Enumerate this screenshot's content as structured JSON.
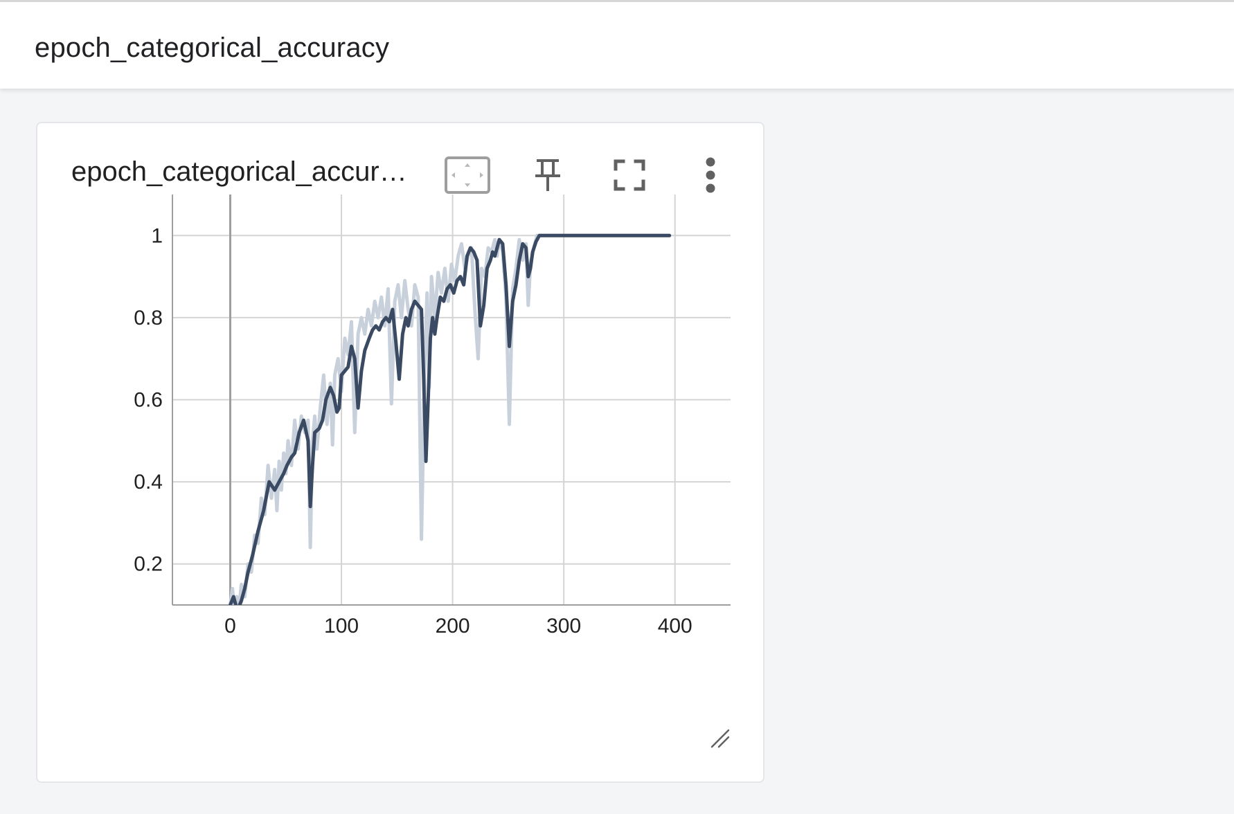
{
  "group": {
    "title": "epoch_categorical_accuracy"
  },
  "card": {
    "title": "epoch_categorical_accuracy",
    "toolbar": [
      {
        "name": "fit-domain-icon",
        "label": "Fit domain to data"
      },
      {
        "name": "pin-icon",
        "label": "Pin card"
      },
      {
        "name": "fullscreen-icon",
        "label": "Toggle full size"
      },
      {
        "name": "more-vert-icon",
        "label": "More options"
      }
    ]
  },
  "colors": {
    "line": "#3a4a63",
    "raw": "#c8d0dc",
    "grid": "#d4d4d4",
    "axis": "#9e9e9e"
  },
  "chart_data": {
    "type": "line",
    "title": "",
    "xlabel": "",
    "ylabel": "",
    "xlim": [
      -52,
      450
    ],
    "ylim": [
      0.1,
      1.1
    ],
    "xticks": [
      0,
      100,
      200,
      300,
      400
    ],
    "xtick_labels": [
      "0",
      "100",
      "200",
      "300",
      "400"
    ],
    "yticks": [
      0.2,
      0.4,
      0.6,
      0.8,
      1
    ],
    "ytick_labels": [
      "0.2",
      "0.4",
      "0.6",
      "0.8",
      "1"
    ],
    "grid": true,
    "series": [
      {
        "role": "smoothed",
        "x": [
          0,
          3,
          5,
          7,
          10,
          13,
          16,
          20,
          25,
          30,
          35,
          40,
          44,
          48,
          51,
          55,
          58,
          62,
          66,
          70,
          72,
          74,
          76,
          80,
          83,
          86,
          90,
          93,
          96,
          98,
          100,
          103,
          106,
          109,
          112,
          115,
          118,
          121,
          125,
          128,
          131,
          134,
          137,
          140,
          143,
          146,
          149,
          152,
          155,
          158,
          160,
          163,
          166,
          169,
          172,
          174,
          176,
          178,
          180,
          182,
          184,
          186,
          189,
          192,
          195,
          198,
          201,
          204,
          207,
          210,
          213,
          216,
          219,
          222,
          225,
          228,
          231,
          234,
          236,
          238,
          240,
          242,
          245,
          248,
          251,
          254,
          257,
          260,
          263,
          266,
          268,
          270,
          272,
          275,
          278,
          281,
          284,
          287,
          290,
          293,
          296,
          298,
          300,
          303,
          306,
          310,
          315,
          320,
          330,
          350,
          380,
          395
        ],
        "y": [
          0.1,
          0.12,
          0.1,
          0.09,
          0.11,
          0.14,
          0.18,
          0.22,
          0.28,
          0.33,
          0.4,
          0.38,
          0.4,
          0.42,
          0.44,
          0.46,
          0.47,
          0.52,
          0.55,
          0.5,
          0.34,
          0.44,
          0.52,
          0.53,
          0.55,
          0.6,
          0.63,
          0.61,
          0.57,
          0.58,
          0.66,
          0.67,
          0.68,
          0.73,
          0.7,
          0.58,
          0.67,
          0.72,
          0.75,
          0.77,
          0.78,
          0.77,
          0.79,
          0.8,
          0.79,
          0.82,
          0.74,
          0.65,
          0.76,
          0.8,
          0.78,
          0.82,
          0.84,
          0.83,
          0.82,
          0.65,
          0.45,
          0.6,
          0.75,
          0.8,
          0.76,
          0.8,
          0.85,
          0.84,
          0.87,
          0.88,
          0.86,
          0.89,
          0.9,
          0.88,
          0.95,
          0.97,
          0.96,
          0.94,
          0.78,
          0.83,
          0.92,
          0.94,
          0.96,
          0.95,
          0.97,
          0.99,
          0.98,
          0.88,
          0.73,
          0.84,
          0.88,
          0.94,
          0.98,
          0.97,
          0.9,
          0.92,
          0.96,
          0.985,
          1.0,
          1.0,
          1.0,
          1.0,
          1.0,
          1.0,
          1.0,
          1.0,
          1.0,
          1.0,
          1.0,
          1.0,
          1.0,
          1.0,
          1.0,
          1.0,
          1.0,
          1.0
        ]
      },
      {
        "role": "raw",
        "x": [
          0,
          2,
          4,
          6,
          8,
          10,
          13,
          16,
          19,
          22,
          25,
          28,
          31,
          34,
          37,
          40,
          42,
          44,
          46,
          48,
          50,
          52,
          55,
          58,
          61,
          64,
          67,
          70,
          72,
          74,
          76,
          78,
          81,
          84,
          87,
          90,
          92,
          94,
          97,
          100,
          103,
          106,
          109,
          112,
          115,
          118,
          121,
          124,
          127,
          130,
          133,
          136,
          139,
          142,
          145,
          148,
          151,
          154,
          157,
          160,
          163,
          166,
          169,
          172,
          175,
          177,
          179,
          181,
          184,
          187,
          190,
          193,
          196,
          199,
          202,
          205,
          208,
          211,
          214,
          217,
          220,
          223,
          226,
          229,
          232,
          235,
          238,
          240,
          242,
          245,
          248,
          251,
          254,
          257,
          260,
          263,
          266,
          268,
          270,
          273,
          276,
          279,
          282,
          285,
          288,
          291,
          294,
          297,
          300,
          305,
          310,
          320,
          350,
          395
        ],
        "y": [
          0.1,
          0.14,
          0.08,
          0.12,
          0.09,
          0.15,
          0.12,
          0.2,
          0.18,
          0.27,
          0.25,
          0.36,
          0.32,
          0.44,
          0.36,
          0.43,
          0.33,
          0.45,
          0.38,
          0.47,
          0.42,
          0.5,
          0.44,
          0.55,
          0.48,
          0.56,
          0.52,
          0.55,
          0.24,
          0.5,
          0.56,
          0.48,
          0.58,
          0.66,
          0.54,
          0.64,
          0.49,
          0.66,
          0.7,
          0.62,
          0.75,
          0.71,
          0.79,
          0.52,
          0.76,
          0.8,
          0.76,
          0.82,
          0.78,
          0.84,
          0.8,
          0.85,
          0.78,
          0.87,
          0.59,
          0.84,
          0.88,
          0.8,
          0.89,
          0.82,
          0.78,
          0.88,
          0.85,
          0.26,
          0.7,
          0.86,
          0.63,
          0.9,
          0.8,
          0.91,
          0.86,
          0.92,
          0.84,
          0.93,
          0.89,
          0.95,
          0.98,
          0.92,
          0.95,
          0.97,
          0.82,
          0.7,
          0.92,
          0.9,
          0.97,
          0.96,
          0.99,
          0.95,
          0.99,
          0.96,
          0.85,
          0.54,
          0.87,
          0.92,
          0.99,
          0.94,
          0.98,
          0.83,
          0.93,
          0.97,
          1.0,
          1.0,
          1.0,
          1.0,
          1.0,
          1.0,
          1.0,
          1.0,
          1.0,
          1.0,
          1.0,
          1.0,
          1.0,
          1.0
        ]
      }
    ]
  }
}
